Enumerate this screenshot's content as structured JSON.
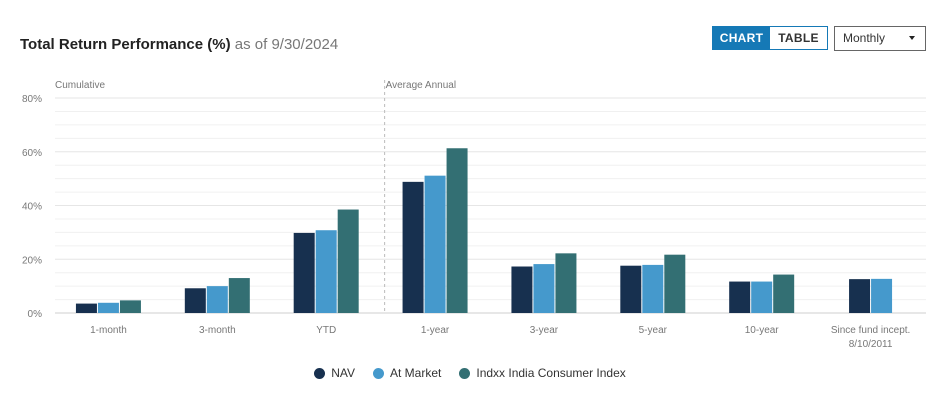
{
  "header": {
    "title_bold": "Total Return Performance (%)",
    "title_asof": "as of 9/30/2024"
  },
  "view_toggle": {
    "chart_label": "CHART",
    "table_label": "TABLE",
    "active": "chart"
  },
  "frequency_select": {
    "selected": "Monthly"
  },
  "section_labels": {
    "left": "Cumulative",
    "right": "Average Annual"
  },
  "chart_data": {
    "type": "bar",
    "categories": [
      "1-month",
      "3-month",
      "YTD",
      "1-year",
      "3-year",
      "5-year",
      "10-year",
      "Since fund incept. 8/10/2011"
    ],
    "category_lines": [
      [
        "1-month"
      ],
      [
        "3-month"
      ],
      [
        "YTD"
      ],
      [
        "1-year"
      ],
      [
        "3-year"
      ],
      [
        "5-year"
      ],
      [
        "10-year"
      ],
      [
        "Since fund incept.",
        "8/10/2011"
      ]
    ],
    "series": [
      {
        "name": "NAV",
        "color": "#17304f",
        "values": [
          3.5,
          9.2,
          29.8,
          48.8,
          17.3,
          17.6,
          11.7,
          12.6
        ]
      },
      {
        "name": "At Market",
        "color": "#4599cc",
        "values": [
          3.8,
          10.0,
          30.8,
          51.1,
          18.2,
          17.9,
          11.7,
          12.7
        ]
      },
      {
        "name": "Indxx India Consumer Index",
        "color": "#336f73",
        "values": [
          4.7,
          13.0,
          38.5,
          61.3,
          22.2,
          21.7,
          14.3,
          null
        ]
      }
    ],
    "y_ticks": [
      "80%",
      "60%",
      "40%",
      "20%",
      "0%"
    ],
    "ylim": [
      0,
      80
    ],
    "y_tick_step": 20,
    "minor_grid_step": 5,
    "legend_position": "bottom-center",
    "divider_after_index": 2
  }
}
